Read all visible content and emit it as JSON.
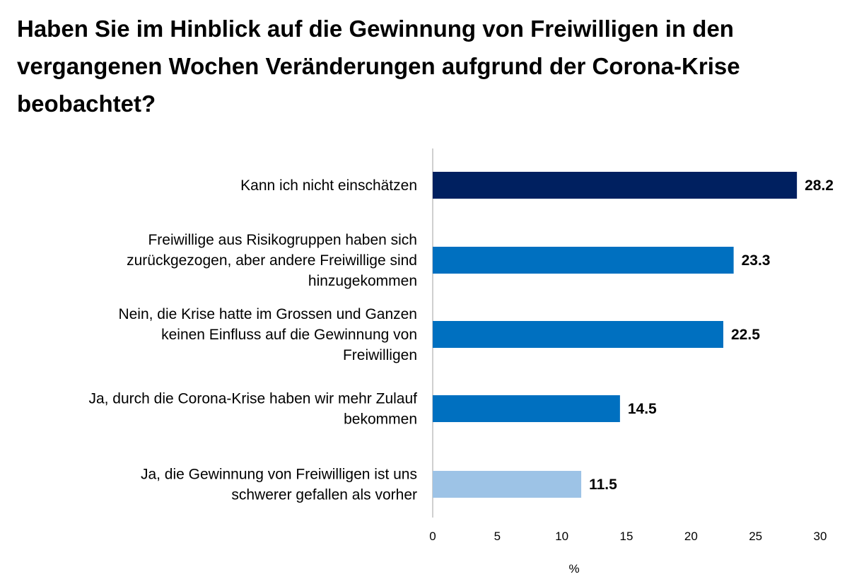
{
  "chart_data": {
    "type": "bar",
    "orientation": "horizontal",
    "title": "Haben Sie im Hinblick auf die Gewinnung von Freiwilligen in den vergangenen Wochen Veränderungen aufgrund der Corona-Krise beobachtet?",
    "xlabel": "%",
    "ylabel": "",
    "xlim": [
      0,
      30
    ],
    "ticks": [
      "0",
      "5",
      "10",
      "15",
      "20",
      "25",
      "30"
    ],
    "grid": false,
    "categories": [
      "Kann ich nicht einschätzen",
      "Freiwillige aus  Risikogruppen haben sich zurückgezogen, aber andere Freiwillige sind hinzugekommen",
      "Nein, die Krise hatte im Grossen und Ganzen keinen Einfluss auf die Gewinnung von Freiwilligen",
      "Ja, durch die Corona-Krise haben wir mehr Zulauf bekommen",
      "Ja, die Gewinnung von Freiwilligen ist uns schwerer gefallen als vorher"
    ],
    "category_lines": [
      [
        "Kann ich nicht einschätzen"
      ],
      [
        "Freiwillige aus  Risikogruppen haben sich",
        "zurückgezogen, aber andere Freiwillige sind",
        "hinzugekommen"
      ],
      [
        "Nein, die Krise hatte im Grossen und Ganzen",
        "keinen Einfluss auf die Gewinnung von",
        "Freiwilligen"
      ],
      [
        "Ja, durch die Corona-Krise haben wir mehr Zulauf",
        "bekommen"
      ],
      [
        "Ja, die Gewinnung von Freiwilligen ist uns",
        "schwerer gefallen als vorher"
      ]
    ],
    "values": [
      28.2,
      23.3,
      22.5,
      14.5,
      11.5
    ],
    "value_labels": [
      "28.2",
      "23.3",
      "22.5",
      "14.5",
      "11.5"
    ],
    "colors": [
      "#002060",
      "#0070c0",
      "#0070c0",
      "#0070c0",
      "#9dc3e6"
    ],
    "axis_color": "#bfbfbf"
  }
}
